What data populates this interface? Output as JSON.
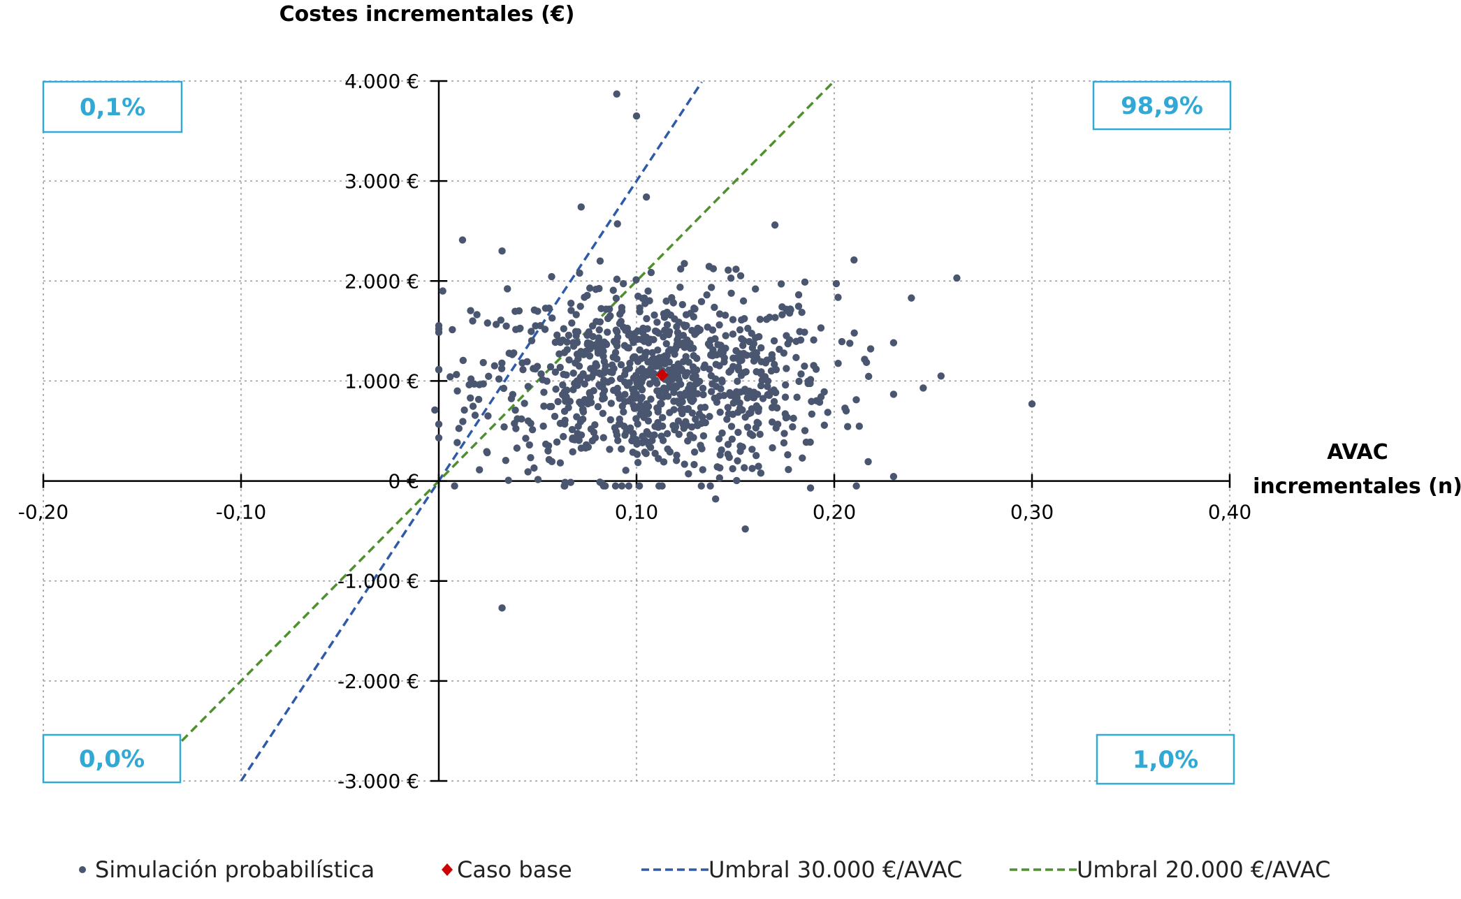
{
  "chart_data": {
    "type": "scatter",
    "title": "",
    "ylabel": "Costes incrementales (€)",
    "xlabel_lines": [
      "AVAC",
      "incrementales (n)"
    ],
    "xlim": [
      -0.2,
      0.4
    ],
    "ylim": [
      -3000,
      4000
    ],
    "x_ticks": [
      -0.2,
      -0.1,
      0.0,
      0.1,
      0.2,
      0.3,
      0.4
    ],
    "x_tick_labels": [
      "-0,20",
      "-0,10",
      "",
      "0,10",
      "0,20",
      "0,30",
      "0,40"
    ],
    "y_ticks": [
      4000,
      3000,
      2000,
      1000,
      0,
      -1000,
      -2000,
      -3000
    ],
    "y_tick_labels": [
      "4.000 €",
      "3.000 €",
      "2.000 €",
      "1.000 €",
      "0 €",
      "-1.000 €",
      "-2.000 €",
      "-3.000 €"
    ],
    "grid": true,
    "quadrant_labels": {
      "top_left": "0,1%",
      "top_right": "98,9%",
      "bottom_left": "0,0%",
      "bottom_right": "1,0%"
    },
    "quadrant_color": "#31a9d4",
    "series": [
      {
        "name": "Simulación probabilística",
        "kind": "scatter",
        "color": "#4a5670",
        "note_points": "approx. 1000 simulated points centred near (0.11, 1000)",
        "outliers": [
          {
            "x": 0.09,
            "y": 3870
          },
          {
            "x": 0.1,
            "y": 3650
          },
          {
            "x": 0.262,
            "y": 2030
          },
          {
            "x": 0.3,
            "y": 770
          },
          {
            "x": 0.032,
            "y": -1270
          },
          {
            "x": 0.155,
            "y": -480
          },
          {
            "x": 0.188,
            "y": -70
          },
          {
            "x": 0.14,
            "y": -180
          },
          {
            "x": -0.002,
            "y": 710
          },
          {
            "x": 0.002,
            "y": 1900
          },
          {
            "x": 0.012,
            "y": 2410
          },
          {
            "x": 0.032,
            "y": 2300
          },
          {
            "x": 0.254,
            "y": 1050
          },
          {
            "x": 0.239,
            "y": 1830
          },
          {
            "x": 0.245,
            "y": 930
          },
          {
            "x": 0.21,
            "y": 2210
          },
          {
            "x": 0.17,
            "y": 2560
          },
          {
            "x": 0.124,
            "y": 1560
          },
          {
            "x": 0.072,
            "y": 2740
          },
          {
            "x": 0.105,
            "y": 2840
          }
        ],
        "cluster": {
          "mean_x": 0.11,
          "sd_x": 0.045,
          "mean_y": 1000,
          "sd_y": 480,
          "n": 950
        }
      },
      {
        "name": "Caso base",
        "kind": "point",
        "color": "#cc0000",
        "x": 0.113,
        "y": 1060
      },
      {
        "name": "Umbral 30.000 €/AVAC",
        "kind": "line",
        "color": "#2e5aa8",
        "dash": true,
        "slope": 30000,
        "x_range": [
          -0.1,
          0.133
        ]
      },
      {
        "name": "Umbral 20.000 €/AVAC",
        "kind": "line",
        "color": "#4e8f2e",
        "dash": true,
        "slope": 20000,
        "x_range": [
          -0.13,
          0.2
        ]
      }
    ],
    "legend": {
      "placement": "bottom",
      "entries": [
        {
          "label": "Simulación probabilística",
          "symbol": "dot",
          "color": "#4a5670"
        },
        {
          "label": "Caso base",
          "symbol": "diamond",
          "color": "#cc0000"
        },
        {
          "label": "Umbral 30.000 €/AVAC",
          "symbol": "dash",
          "color": "#2e5aa8"
        },
        {
          "label": "Umbral 20.000 €/AVAC",
          "symbol": "dash",
          "color": "#4e8f2e"
        }
      ]
    }
  }
}
